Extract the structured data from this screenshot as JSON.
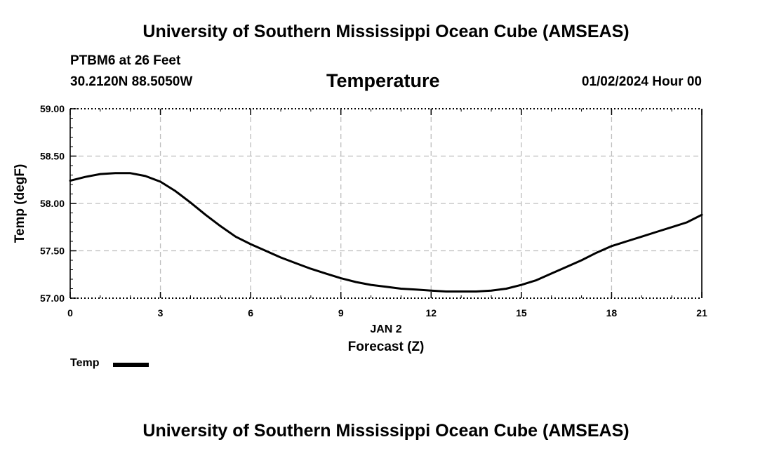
{
  "page": {
    "title_top": "University of Southern Mississippi Ocean Cube (AMSEAS)",
    "title_bottom": "University of Southern Mississippi Ocean Cube (AMSEAS)",
    "station": "PTBM6 at 26 Feet",
    "coords": "30.2120N  88.5050W",
    "datetime": "01/02/2024 Hour 00"
  },
  "chart_data": {
    "type": "line",
    "title": "Temperature",
    "xlabel": "Forecast (Z)",
    "xsublabel": "JAN 2",
    "ylabel": "Temp (degF)",
    "xlim": [
      0,
      21
    ],
    "ylim": [
      57.0,
      59.0
    ],
    "xticks": [
      0,
      3,
      6,
      9,
      12,
      15,
      18,
      21
    ],
    "yticks": [
      57.0,
      57.5,
      58.0,
      58.5,
      59.0
    ],
    "ytick_labels": [
      "57.00",
      "57.50",
      "58.00",
      "58.50",
      "59.00"
    ],
    "grid": true,
    "legend": "bottom-left",
    "series": [
      {
        "name": "Temp",
        "color": "#000000",
        "x": [
          0,
          0.5,
          1,
          1.5,
          2,
          2.5,
          3,
          3.5,
          4,
          4.5,
          5,
          5.5,
          6,
          6.5,
          7,
          7.5,
          8,
          8.5,
          9,
          9.5,
          10,
          10.5,
          11,
          11.5,
          12,
          12.5,
          13,
          13.5,
          14,
          14.5,
          15,
          15.5,
          16,
          16.5,
          17,
          17.5,
          18,
          18.5,
          19,
          19.5,
          20,
          20.5,
          21
        ],
        "y": [
          58.24,
          58.28,
          58.31,
          58.32,
          58.32,
          58.29,
          58.23,
          58.13,
          58.01,
          57.88,
          57.76,
          57.65,
          57.57,
          57.5,
          57.43,
          57.37,
          57.31,
          57.26,
          57.21,
          57.17,
          57.14,
          57.12,
          57.1,
          57.09,
          57.08,
          57.07,
          57.07,
          57.07,
          57.08,
          57.1,
          57.14,
          57.19,
          57.26,
          57.33,
          57.4,
          57.48,
          57.55,
          57.6,
          57.65,
          57.7,
          57.75,
          57.8,
          57.88
        ]
      }
    ]
  }
}
